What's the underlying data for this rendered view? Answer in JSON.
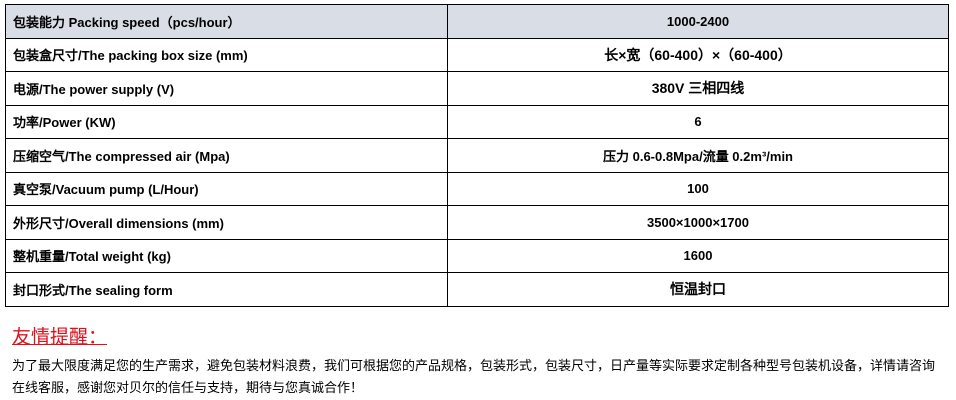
{
  "specs": [
    {
      "label": "包装能力 Packing speed（pcs/hour）",
      "value": "1000-2400"
    },
    {
      "label": "包装盒尺寸/The packing box size (mm)",
      "value": "长×宽（60-400）×（60-400）"
    },
    {
      "label": "电源/The power supply (V)",
      "value": "380V 三相四线"
    },
    {
      "label": "功率/Power (KW)",
      "value": "6"
    },
    {
      "label": "压缩空气/The compressed air (Mpa)",
      "value": "压力 0.6-0.8Mpa/流量 0.2m³/min"
    },
    {
      "label": "真空泵/Vacuum pump (L/Hour)",
      "value": "100"
    },
    {
      "label": "外形尺寸/Overall dimensions (mm)",
      "value": "3500×1000×1700"
    },
    {
      "label": "整机重量/Total weight (kg)",
      "value": "1600"
    },
    {
      "label": "封口形式/The sealing form",
      "value": "恒温封口"
    }
  ],
  "reminder": {
    "title": "友情提醒：",
    "text": "为了最大限度满足您的生产需求，避免包装材料浪费，我们可根据您的产品规格，包装形式，包装尺寸，日产量等实际要求定制各种型号包装机设备，详情请咨询在线客服，感谢您对贝尔的信任与支持，期待与您真诚合作！"
  },
  "colors": {
    "header_bg": "#d9dde6",
    "reminder_title": "#e0101a"
  }
}
